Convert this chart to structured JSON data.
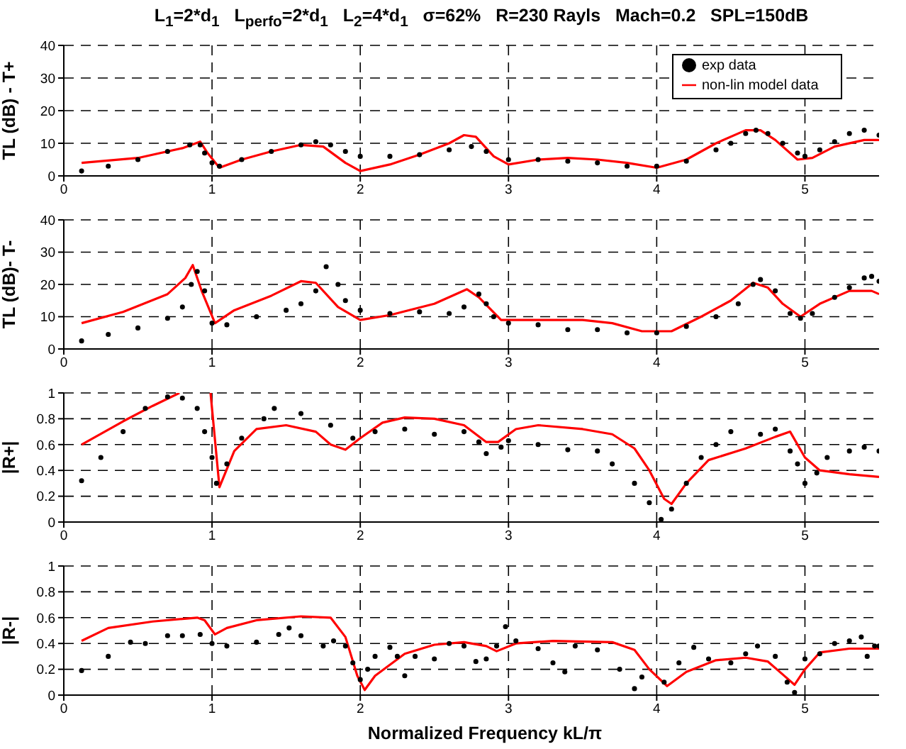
{
  "chart_data": [
    {
      "type": "line",
      "title": "L$_{1}$=2*d$_{1}$   L$_{perfo}$=2*d$_{1}$   L$_{2}$=4*d$_{1}$   σ=62%   R=230 Rayls   Mach=0.2   SPL=150dB",
      "ylabel": "TL (dB) - T+",
      "xlim": [
        0,
        5.5
      ],
      "xticks": [
        0,
        1,
        2,
        3,
        4,
        5
      ],
      "ylim": [
        0,
        40
      ],
      "yticks": [
        0,
        10,
        20,
        30,
        40
      ],
      "grid": true,
      "legend": "top right",
      "series": [
        {
          "name": "exp data",
          "type": "scatter",
          "marker": "circle",
          "color": "#000000",
          "x": [
            0.12,
            0.3,
            0.5,
            0.7,
            0.85,
            0.92,
            0.95,
            1.0,
            1.05,
            1.2,
            1.4,
            1.6,
            1.7,
            1.8,
            1.9,
            2.0,
            2.2,
            2.4,
            2.6,
            2.75,
            2.85,
            3.0,
            3.2,
            3.4,
            3.6,
            3.8,
            4.0,
            4.2,
            4.4,
            4.5,
            4.6,
            4.67,
            4.75,
            4.85,
            4.95,
            5.0,
            5.1,
            5.2,
            5.3,
            5.4,
            5.5
          ],
          "values": [
            1.5,
            3,
            5,
            7.5,
            9.5,
            9.5,
            7,
            4,
            3,
            5,
            7.5,
            9.5,
            10.5,
            9.5,
            7.5,
            6,
            6,
            6.5,
            8,
            9,
            7.5,
            5,
            5,
            4.5,
            4,
            3,
            3,
            4.5,
            8,
            10,
            13,
            14,
            13,
            10,
            7,
            6,
            8,
            10.5,
            13,
            14,
            12.5
          ]
        },
        {
          "name": "non-lin model data",
          "type": "line",
          "marker": "none",
          "line_style": "solid",
          "color": "#ff0000",
          "x": [
            0.12,
            0.5,
            0.8,
            0.92,
            0.97,
            1.05,
            1.2,
            1.4,
            1.6,
            1.75,
            1.9,
            2.0,
            2.2,
            2.4,
            2.6,
            2.7,
            2.78,
            2.9,
            3.0,
            3.2,
            3.4,
            3.6,
            3.8,
            4.0,
            4.2,
            4.4,
            4.6,
            4.7,
            4.8,
            4.95,
            5.05,
            5.2,
            5.4,
            5.5
          ],
          "values": [
            4,
            5.5,
            8.5,
            10.5,
            7,
            2.5,
            5,
            7.5,
            9.5,
            9,
            4,
            1.5,
            3.5,
            6.5,
            10,
            12.5,
            12,
            6,
            3.5,
            5,
            5.5,
            5,
            4,
            2.5,
            5,
            10,
            14,
            14,
            11,
            5,
            5.5,
            9,
            11,
            11
          ]
        }
      ]
    },
    {
      "type": "line",
      "ylabel": "TL (dB)- T-",
      "xlim": [
        0,
        5.5
      ],
      "xticks": [
        0,
        1,
        2,
        3,
        4,
        5
      ],
      "ylim": [
        0,
        40
      ],
      "yticks": [
        0,
        10,
        20,
        30,
        40
      ],
      "grid": true,
      "series": [
        {
          "type": "scatter",
          "marker": "circle",
          "color": "#000000",
          "x": [
            0.12,
            0.3,
            0.5,
            0.7,
            0.8,
            0.86,
            0.9,
            0.95,
            1.0,
            1.1,
            1.3,
            1.5,
            1.6,
            1.7,
            1.77,
            1.85,
            1.9,
            2.0,
            2.2,
            2.4,
            2.6,
            2.7,
            2.8,
            2.85,
            2.9,
            3.0,
            3.2,
            3.4,
            3.6,
            3.8,
            4.0,
            4.2,
            4.4,
            4.55,
            4.65,
            4.7,
            4.8,
            4.9,
            4.97,
            5.05,
            5.2,
            5.3,
            5.4,
            5.45,
            5.5
          ],
          "values": [
            2.5,
            4.5,
            6.5,
            9.5,
            13,
            20,
            24,
            18,
            8,
            7.5,
            10,
            12,
            14,
            18,
            25.5,
            20,
            15,
            12,
            11,
            11.5,
            11,
            13,
            17,
            14,
            10,
            8,
            7.5,
            6,
            6,
            5,
            5,
            7,
            10,
            14,
            20,
            21.5,
            18,
            11,
            9.5,
            11,
            16,
            19,
            22,
            22.5,
            21
          ]
        },
        {
          "type": "line",
          "marker": "none",
          "line_style": "solid",
          "color": "#ff0000",
          "x": [
            0.12,
            0.4,
            0.7,
            0.82,
            0.87,
            0.93,
            1.02,
            1.15,
            1.4,
            1.6,
            1.7,
            1.85,
            2.0,
            2.2,
            2.5,
            2.72,
            2.8,
            2.95,
            3.2,
            3.5,
            3.7,
            3.9,
            4.1,
            4.3,
            4.5,
            4.65,
            4.75,
            4.85,
            4.97,
            5.1,
            5.3,
            5.45,
            5.5
          ],
          "values": [
            8,
            11.5,
            17,
            22,
            26,
            18,
            8,
            12,
            16.5,
            21,
            20.5,
            13,
            9,
            10.5,
            14,
            18.5,
            16,
            9,
            9,
            9,
            8,
            5.5,
            5.5,
            10,
            15,
            20.5,
            19,
            14,
            10,
            14,
            18,
            18,
            17
          ]
        }
      ]
    },
    {
      "type": "line",
      "ylabel": "|R+|",
      "xlim": [
        0,
        5.5
      ],
      "xticks": [
        0,
        1,
        2,
        3,
        4,
        5
      ],
      "ylim": [
        0,
        1
      ],
      "yticks": [
        0,
        0.2,
        0.4,
        0.6,
        0.8,
        1
      ],
      "grid": true,
      "series": [
        {
          "type": "scatter",
          "marker": "circle",
          "color": "#000000",
          "x": [
            0.12,
            0.25,
            0.4,
            0.55,
            0.7,
            0.8,
            0.9,
            0.95,
            1.0,
            1.03,
            1.1,
            1.2,
            1.35,
            1.42,
            1.6,
            1.8,
            1.95,
            2.1,
            2.3,
            2.5,
            2.7,
            2.8,
            2.85,
            2.95,
            3.0,
            3.2,
            3.4,
            3.6,
            3.7,
            3.85,
            3.95,
            4.03,
            4.1,
            4.2,
            4.3,
            4.4,
            4.5,
            4.7,
            4.8,
            4.9,
            4.95,
            5.0,
            5.08,
            5.15,
            5.3,
            5.4,
            5.5
          ],
          "values": [
            0.32,
            0.5,
            0.7,
            0.88,
            0.97,
            0.96,
            0.88,
            0.7,
            0.5,
            0.3,
            0.45,
            0.65,
            0.8,
            0.88,
            0.84,
            0.75,
            0.65,
            0.7,
            0.72,
            0.68,
            0.7,
            0.62,
            0.53,
            0.58,
            0.63,
            0.6,
            0.56,
            0.55,
            0.45,
            0.3,
            0.15,
            0.02,
            0.1,
            0.3,
            0.5,
            0.6,
            0.7,
            0.68,
            0.72,
            0.55,
            0.45,
            0.3,
            0.38,
            0.5,
            0.55,
            0.58,
            0.55
          ]
        },
        {
          "type": "line",
          "marker": "none",
          "line_style": "solid",
          "color": "#ff0000",
          "x": [
            0.12,
            0.4,
            0.6,
            0.78,
            0.9,
            0.99,
            1.05,
            1.15,
            1.3,
            1.5,
            1.7,
            1.8,
            1.9,
            2.0,
            2.15,
            2.3,
            2.5,
            2.7,
            2.85,
            2.93,
            3.05,
            3.2,
            3.5,
            3.7,
            3.85,
            3.95,
            4.05,
            4.1,
            4.2,
            4.35,
            4.6,
            4.8,
            4.9,
            5.0,
            5.1,
            5.3,
            5.5
          ],
          "values": [
            0.6,
            0.78,
            0.9,
            1,
            null,
            1,
            0.27,
            0.55,
            0.72,
            0.75,
            0.7,
            0.6,
            0.56,
            0.65,
            0.77,
            0.81,
            0.8,
            0.75,
            0.62,
            0.62,
            0.72,
            0.75,
            0.72,
            0.68,
            0.57,
            0.4,
            0.18,
            0.14,
            0.3,
            0.48,
            0.57,
            0.66,
            0.7,
            0.5,
            0.4,
            0.37,
            0.35
          ]
        }
      ]
    },
    {
      "type": "line",
      "ylabel": "|R-|",
      "xlabel": "Normalized Frequency kL/π",
      "xlim": [
        0,
        5.5
      ],
      "xticks": [
        0,
        1,
        2,
        3,
        4,
        5
      ],
      "ylim": [
        0,
        1
      ],
      "yticks": [
        0,
        0.2,
        0.4,
        0.6,
        0.8,
        1
      ],
      "grid": true,
      "series": [
        {
          "type": "scatter",
          "marker": "circle",
          "color": "#000000",
          "x": [
            0.12,
            0.3,
            0.45,
            0.55,
            0.7,
            0.8,
            0.92,
            1.0,
            1.1,
            1.3,
            1.45,
            1.52,
            1.6,
            1.75,
            1.82,
            1.9,
            1.95,
            2.0,
            2.05,
            2.1,
            2.2,
            2.25,
            2.3,
            2.37,
            2.5,
            2.6,
            2.7,
            2.78,
            2.85,
            2.92,
            2.98,
            3.05,
            3.2,
            3.3,
            3.38,
            3.45,
            3.6,
            3.75,
            3.85,
            3.9,
            4.05,
            4.15,
            4.25,
            4.35,
            4.5,
            4.6,
            4.68,
            4.8,
            4.88,
            4.93,
            5.0,
            5.1,
            5.2,
            5.3,
            5.38,
            5.42,
            5.47,
            5.5
          ],
          "values": [
            0.19,
            0.3,
            0.41,
            0.4,
            0.46,
            0.46,
            0.47,
            0.4,
            0.38,
            0.41,
            0.47,
            0.52,
            0.46,
            0.38,
            0.42,
            0.38,
            0.25,
            0.12,
            0.2,
            0.3,
            0.37,
            0.3,
            0.15,
            0.3,
            0.28,
            0.4,
            0.38,
            0.26,
            0.28,
            0.38,
            0.53,
            0.42,
            0.36,
            0.25,
            0.18,
            0.38,
            0.35,
            0.2,
            0.05,
            0.14,
            0.1,
            0.25,
            0.37,
            0.28,
            0.25,
            0.32,
            0.38,
            0.3,
            0.1,
            0.02,
            0.28,
            0.32,
            0.4,
            0.42,
            0.45,
            0.3,
            0.38,
            0.38
          ]
        },
        {
          "type": "line",
          "marker": "none",
          "line_style": "solid",
          "color": "#ff0000",
          "x": [
            0.12,
            0.3,
            0.6,
            0.9,
            0.95,
            1.02,
            1.1,
            1.3,
            1.6,
            1.8,
            1.9,
            1.98,
            2.03,
            2.1,
            2.3,
            2.5,
            2.7,
            2.85,
            2.92,
            3.05,
            3.3,
            3.7,
            3.85,
            3.95,
            4.07,
            4.2,
            4.4,
            4.6,
            4.75,
            4.85,
            4.93,
            5.0,
            5.1,
            5.3,
            5.5
          ],
          "values": [
            0.42,
            0.52,
            0.57,
            0.6,
            0.58,
            0.47,
            0.52,
            0.58,
            0.61,
            0.6,
            0.45,
            0.15,
            0.04,
            0.15,
            0.32,
            0.39,
            0.41,
            0.38,
            0.34,
            0.4,
            0.42,
            0.41,
            0.35,
            0.2,
            0.07,
            0.18,
            0.27,
            0.29,
            0.26,
            0.16,
            0.08,
            0.2,
            0.33,
            0.36,
            0.36
          ]
        }
      ]
    }
  ]
}
